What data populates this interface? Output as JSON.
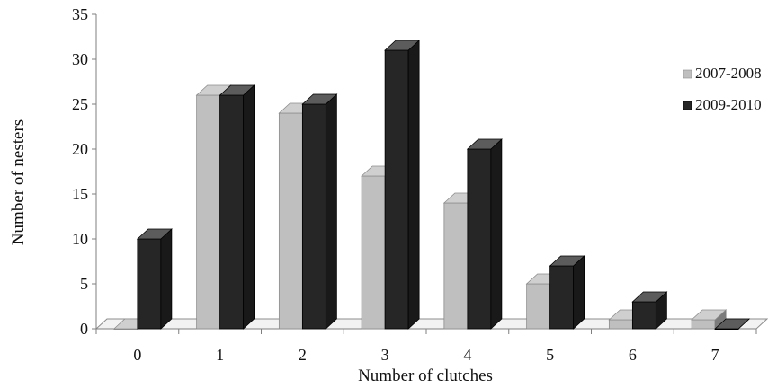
{
  "chart_data": {
    "type": "bar",
    "categories": [
      "0",
      "1",
      "2",
      "3",
      "4",
      "5",
      "6",
      "7"
    ],
    "series": [
      {
        "name": "2007-2008",
        "values": [
          0,
          26,
          24,
          17,
          14,
          5,
          1,
          1
        ],
        "color": "#bfbfbf"
      },
      {
        "name": "2009-2010",
        "values": [
          10,
          26,
          25,
          31,
          20,
          7,
          3,
          0
        ],
        "color": "#262626"
      }
    ],
    "xlabel": "Number of clutches",
    "ylabel": "Number of nesters",
    "ylim": [
      0,
      35
    ],
    "yticks": [
      0,
      5,
      10,
      15,
      20,
      25,
      30,
      35
    ],
    "grid": false,
    "legend_position": "right",
    "style": "3d-bar"
  }
}
